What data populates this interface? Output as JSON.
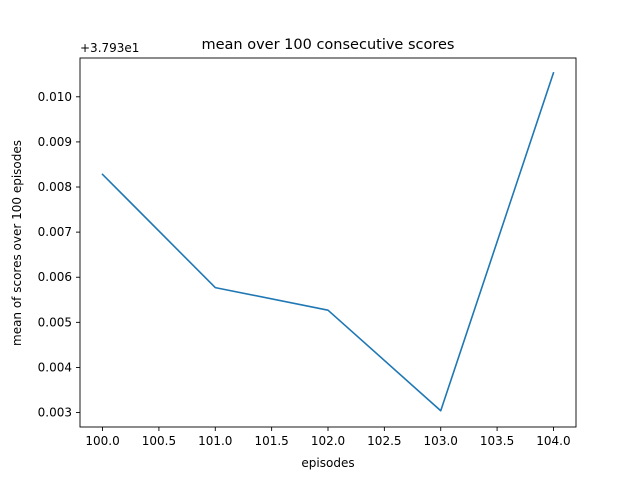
{
  "chart_data": {
    "type": "line",
    "title": "mean over 100 consecutive scores",
    "xlabel": "episodes",
    "ylabel": "mean of scores over 100 episodes",
    "y_offset_label": "+3.793e1",
    "x_ticks": [
      "100.0",
      "100.5",
      "101.0",
      "101.5",
      "102.0",
      "102.5",
      "103.0",
      "103.5",
      "104.0"
    ],
    "y_ticks": [
      "0.003",
      "0.004",
      "0.005",
      "0.006",
      "0.007",
      "0.008",
      "0.009",
      "0.010"
    ],
    "xlim": [
      99.8,
      104.2
    ],
    "ylim": [
      0.00268,
      0.01086
    ],
    "grid": false,
    "series": [
      {
        "color": "#1f77b4",
        "x": [
          100,
          101,
          102,
          103,
          104
        ],
        "y": [
          0.00828,
          0.00577,
          0.00527,
          0.00304,
          0.01053
        ]
      }
    ]
  }
}
